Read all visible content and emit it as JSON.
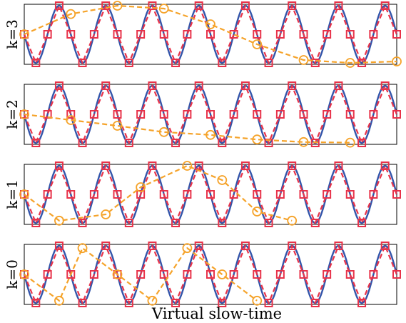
{
  "chart_data": {
    "type": "line",
    "xlabel": "Virtual slow-time",
    "ylim": [
      -1,
      1
    ],
    "colors": {
      "sinusoid": "#3355aa",
      "samples": "#e8334a",
      "subsampled": "#f5a32a"
    },
    "sinusoid": {
      "periods": 8,
      "phase_rad": 3.14159
    },
    "sample_count": 33,
    "panels": [
      {
        "label": "k=3",
        "subsampled_x": [
          0,
          4,
          8,
          12,
          16,
          20,
          24,
          28,
          32
        ],
        "subsampled_y": [
          0,
          0.71,
          1,
          0.9,
          0.35,
          -0.35,
          -0.9,
          -1,
          -0.95
        ]
      },
      {
        "label": "k=2",
        "subsampled_x": [
          0,
          4,
          8,
          12,
          16,
          20,
          24,
          28
        ],
        "subsampled_y": [
          0,
          -0.2,
          -0.4,
          -0.62,
          -0.72,
          -0.88,
          -0.97,
          -0.99
        ]
      },
      {
        "label": "k=1",
        "subsampled_x": [
          0,
          3,
          7,
          10,
          14,
          17,
          20,
          23
        ],
        "subsampled_y": [
          0,
          -0.92,
          -0.7,
          0.25,
          1,
          0.5,
          -0.6,
          -0.92
        ]
      },
      {
        "label": "k=0",
        "subsampled_x": [
          0,
          3,
          5,
          8,
          11,
          14,
          17,
          20
        ],
        "subsampled_y": [
          0,
          -0.92,
          0.92,
          0,
          -0.92,
          0.92,
          0,
          -0.92
        ]
      }
    ]
  }
}
